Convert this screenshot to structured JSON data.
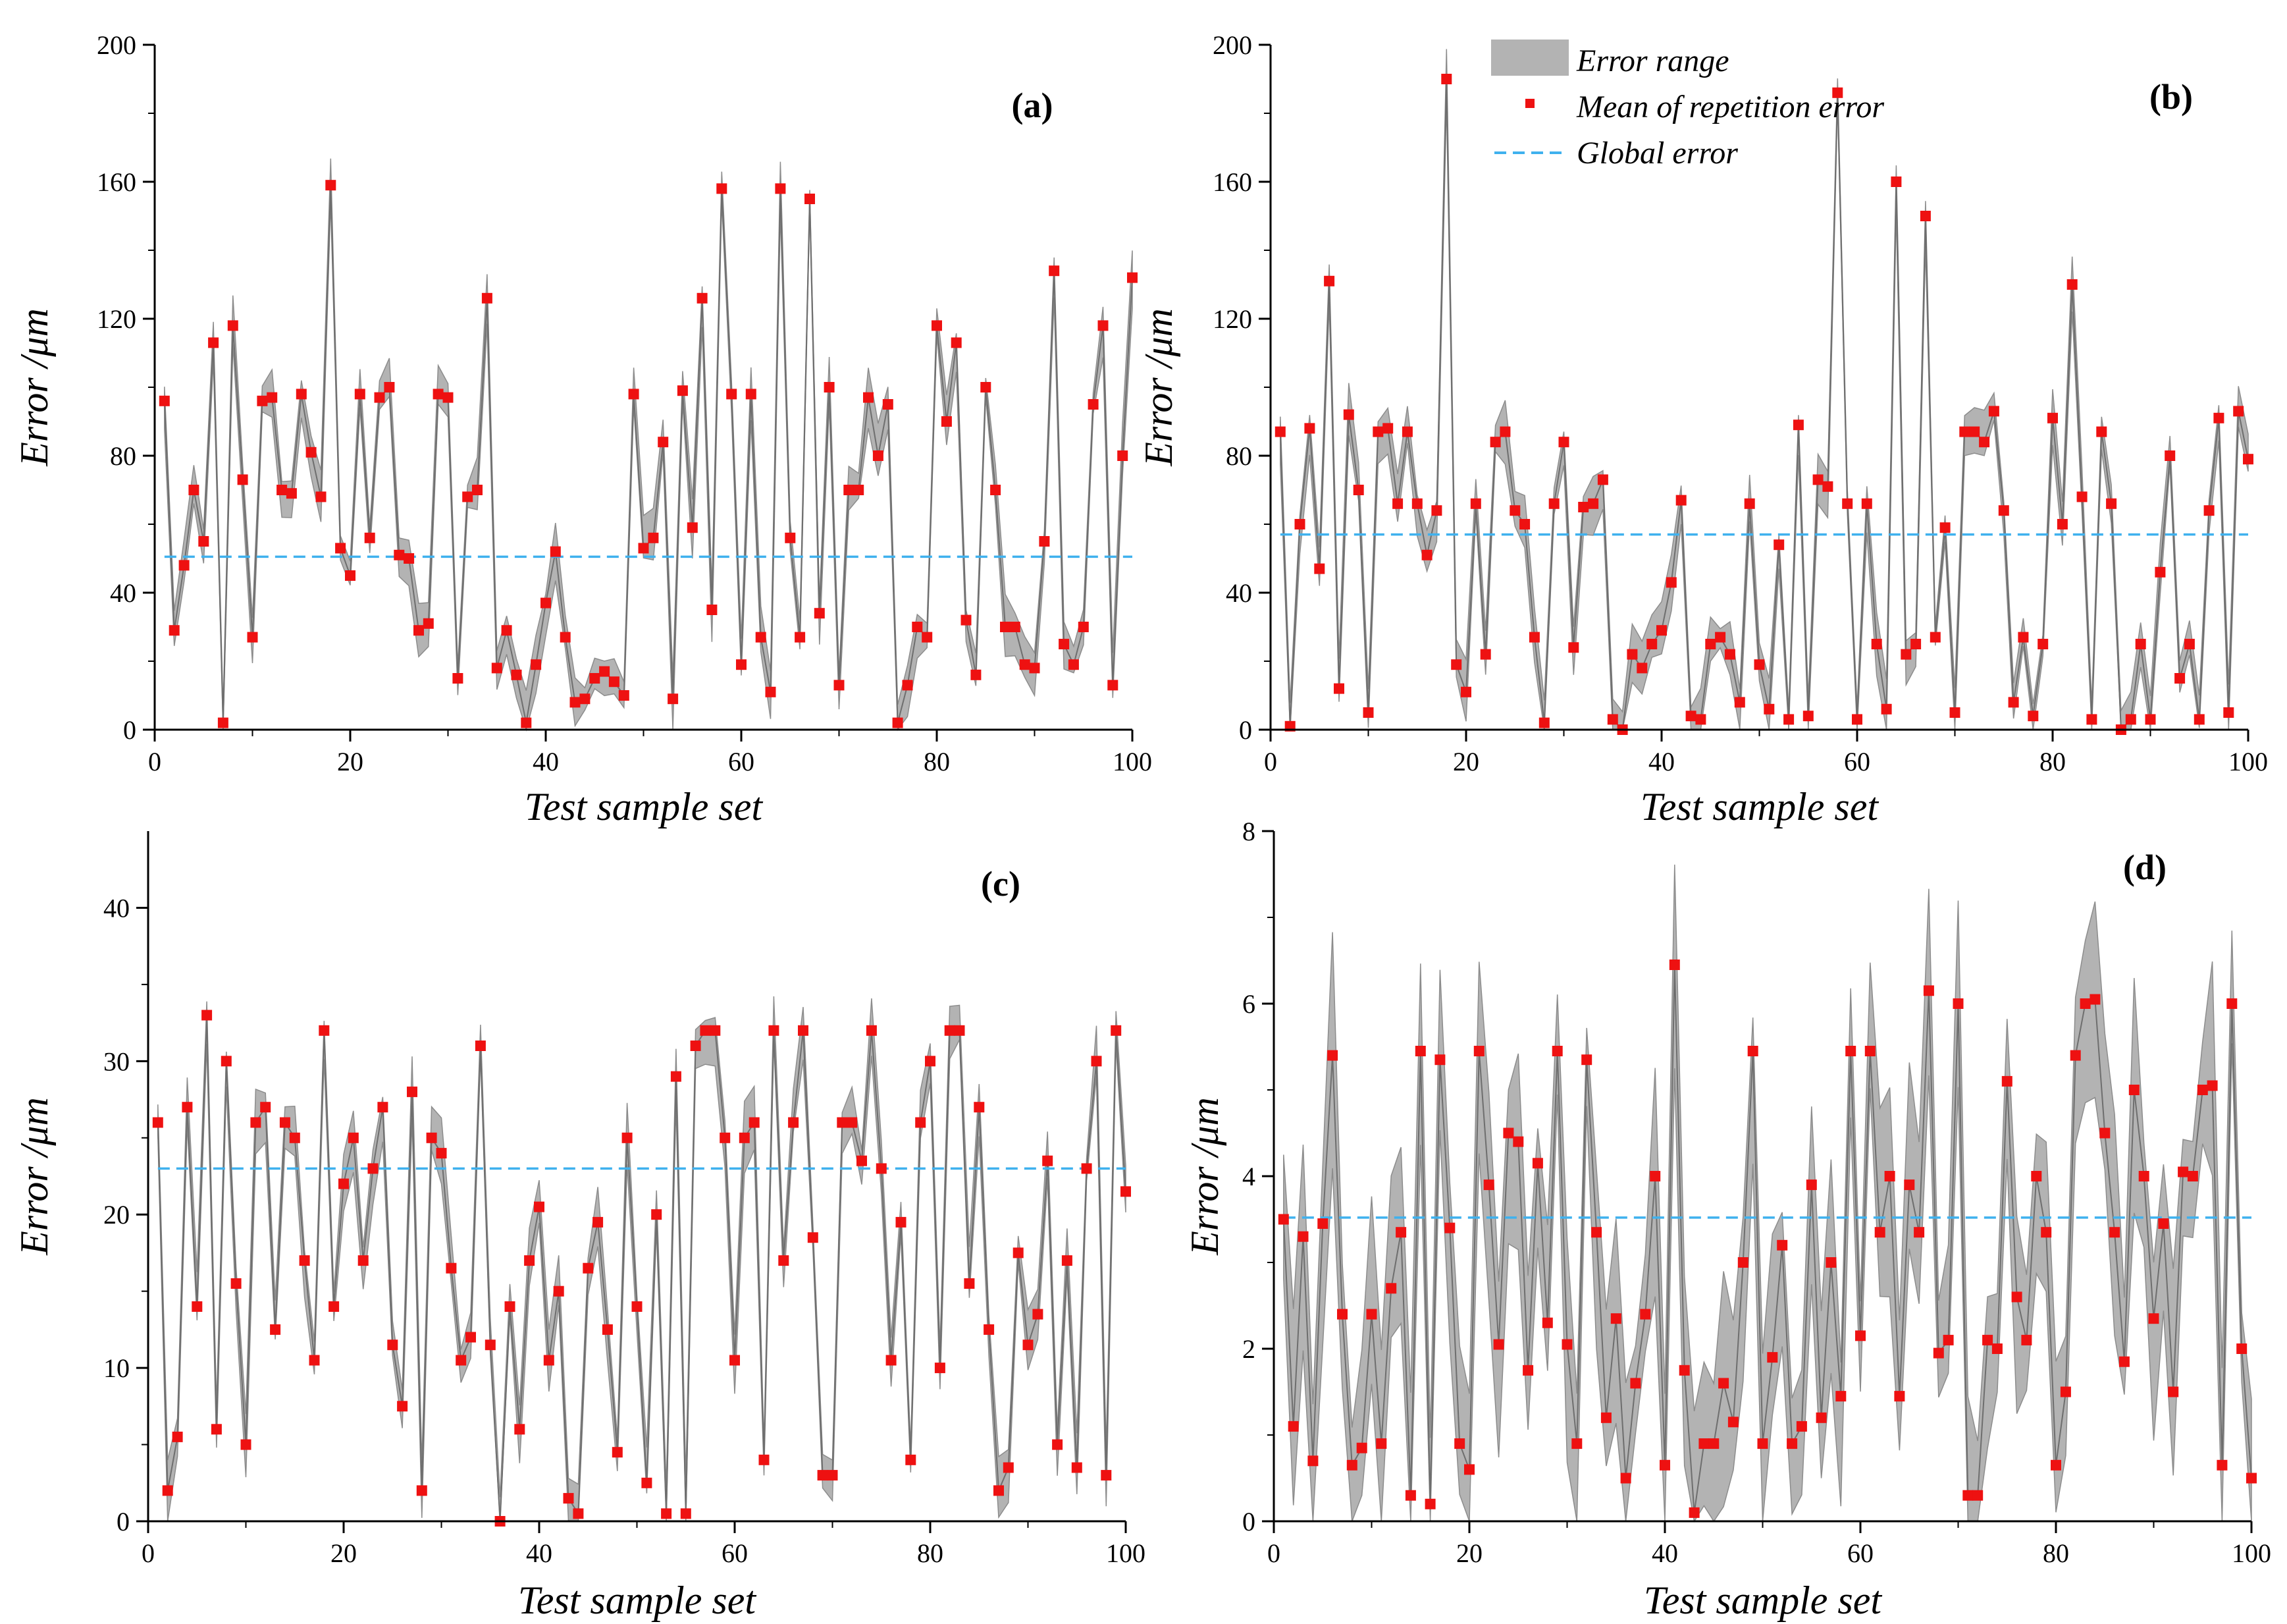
{
  "legend": {
    "band_label": "Error range",
    "mean_label": "Mean of repetition error",
    "global_label": "Global error",
    "band_color": "#b3b3b3",
    "mean_color": "#ee1111",
    "global_color": "#3fb1ee"
  },
  "chart_data": [
    {
      "panel": "(a)",
      "type": "line",
      "xlabel": "Test sample set",
      "ylabel": "Error /μm",
      "xlim": [
        0,
        100
      ],
      "ylim": [
        0,
        200
      ],
      "xticks": [
        0,
        20,
        40,
        60,
        80,
        100
      ],
      "yticks": [
        0,
        40,
        80,
        120,
        160,
        200
      ],
      "global_error": 50.5,
      "series": [
        {
          "name": "Mean of repetition error",
          "values": [
            96,
            29,
            48,
            70,
            55,
            113,
            2,
            118,
            73,
            27,
            96,
            97,
            70,
            69,
            98,
            81,
            68,
            159,
            53,
            45,
            98,
            56,
            97,
            100,
            51,
            50,
            29,
            31,
            98,
            97,
            15,
            68,
            70,
            126,
            18,
            29,
            16,
            2,
            19,
            37,
            52,
            27,
            8,
            9,
            15,
            17,
            14,
            10,
            98,
            53,
            56,
            84,
            9,
            99,
            59,
            126,
            35,
            158,
            98,
            19,
            98,
            27,
            11,
            158,
            56,
            27,
            155,
            34,
            100,
            13,
            70,
            70,
            97,
            80,
            95,
            2,
            13,
            30,
            27,
            118,
            90,
            113,
            32,
            16,
            100,
            70,
            30,
            30,
            19,
            18,
            55,
            134,
            25,
            19,
            30,
            95,
            118,
            13,
            80,
            132
          ]
        }
      ],
      "band_halfwidth": 6
    },
    {
      "panel": "(b)",
      "type": "line",
      "xlabel": "Test sample set",
      "ylabel": "Error /μm",
      "xlim": [
        0,
        100
      ],
      "ylim": [
        0,
        200
      ],
      "xticks": [
        0,
        20,
        40,
        60,
        80,
        100
      ],
      "yticks": [
        0,
        40,
        80,
        120,
        160,
        200
      ],
      "global_error": 57,
      "series": [
        {
          "name": "Mean of repetition error",
          "values": [
            87,
            1,
            60,
            88,
            47,
            131,
            12,
            92,
            70,
            5,
            87,
            88,
            66,
            87,
            66,
            51,
            64,
            190,
            19,
            11,
            66,
            22,
            84,
            87,
            64,
            60,
            27,
            2,
            66,
            84,
            24,
            65,
            66,
            73,
            3,
            0,
            22,
            18,
            25,
            29,
            43,
            67,
            4,
            3,
            25,
            27,
            22,
            8,
            66,
            19,
            6,
            54,
            3,
            89,
            4,
            73,
            71,
            186,
            66,
            3,
            66,
            25,
            6,
            160,
            22,
            25,
            150,
            27,
            59,
            5,
            87,
            87,
            84,
            93,
            64,
            8,
            27,
            4,
            25,
            91,
            60,
            130,
            68,
            3,
            87,
            66,
            0,
            3,
            25,
            3,
            46,
            80,
            15,
            25,
            3,
            64,
            91,
            5,
            93,
            79
          ]
        }
      ],
      "band_halfwidth": 6
    },
    {
      "panel": "(c)",
      "type": "line",
      "xlabel": "Test sample set",
      "ylabel": "Error /μm",
      "xlim": [
        0,
        100
      ],
      "ylim": [
        0,
        45
      ],
      "xticks": [
        0,
        20,
        40,
        60,
        80,
        100
      ],
      "yticks": [
        0,
        10,
        20,
        30,
        40
      ],
      "global_error": 23,
      "series": [
        {
          "name": "Mean of repetition error",
          "values": [
            26,
            2,
            5.5,
            27,
            14,
            33,
            6,
            30,
            15.5,
            5,
            26,
            27,
            12.5,
            26,
            25,
            17,
            10.5,
            32,
            14,
            22,
            25,
            17,
            23,
            27,
            11.5,
            7.5,
            28,
            2,
            25,
            24,
            16.5,
            10.5,
            12,
            31,
            11.5,
            0,
            14,
            6,
            17,
            20.5,
            10.5,
            15,
            1.5,
            0.5,
            16.5,
            19.5,
            12.5,
            4.5,
            25,
            14,
            2.5,
            20,
            0.5,
            29,
            0.5,
            31,
            32,
            32,
            25,
            10.5,
            25,
            26,
            4,
            32,
            17,
            26,
            32,
            18.5,
            3,
            3,
            26,
            26,
            23.5,
            32,
            23,
            10.5,
            19.5,
            4,
            26,
            30,
            10,
            32,
            32,
            15.5,
            27,
            12.5,
            2,
            3.5,
            17.5,
            11.5,
            13.5,
            23.5,
            5,
            17,
            3.5,
            23,
            30,
            3,
            32,
            21.5
          ]
        }
      ],
      "band_halfwidth": 1.5
    },
    {
      "panel": "(d)",
      "type": "line",
      "xlabel": "Test sample set",
      "ylabel": "Error /μm",
      "xlim": [
        0,
        100
      ],
      "ylim": [
        0,
        8
      ],
      "xticks": [
        0,
        20,
        40,
        60,
        80,
        100
      ],
      "yticks": [
        0,
        2,
        4,
        6,
        8
      ],
      "global_error": 3.52,
      "series": [
        {
          "name": "Mean of repetition error",
          "values": [
            3.5,
            1.1,
            3.3,
            0.7,
            3.45,
            5.4,
            2.4,
            0.65,
            0.85,
            2.4,
            0.9,
            2.7,
            3.35,
            0.3,
            5.45,
            0.2,
            5.35,
            3.4,
            0.9,
            0.6,
            5.45,
            3.9,
            2.05,
            4.5,
            4.4,
            1.75,
            4.15,
            2.3,
            5.45,
            2.05,
            0.9,
            5.35,
            3.35,
            1.2,
            2.35,
            0.5,
            1.6,
            2.4,
            4,
            0.65,
            6.45,
            1.75,
            0.1,
            0.9,
            0.9,
            1.6,
            1.15,
            3,
            5.45,
            0.9,
            1.9,
            3.2,
            0.9,
            1.1,
            3.9,
            1.2,
            3,
            1.45,
            5.45,
            2.15,
            5.45,
            3.35,
            4,
            1.45,
            3.9,
            3.35,
            6.15,
            1.95,
            2.1,
            6,
            0.3,
            0.3,
            2.1,
            2,
            5.1,
            2.6,
            2.1,
            4,
            3.35,
            0.65,
            1.5,
            5.4,
            6,
            6.05,
            4.5,
            3.35,
            1.85,
            5,
            4,
            2.35,
            3.45,
            1.5,
            4.05,
            4,
            5,
            5.05,
            0.65,
            6,
            2,
            0.5
          ]
        }
      ],
      "band_halfwidth": 0.9
    }
  ]
}
